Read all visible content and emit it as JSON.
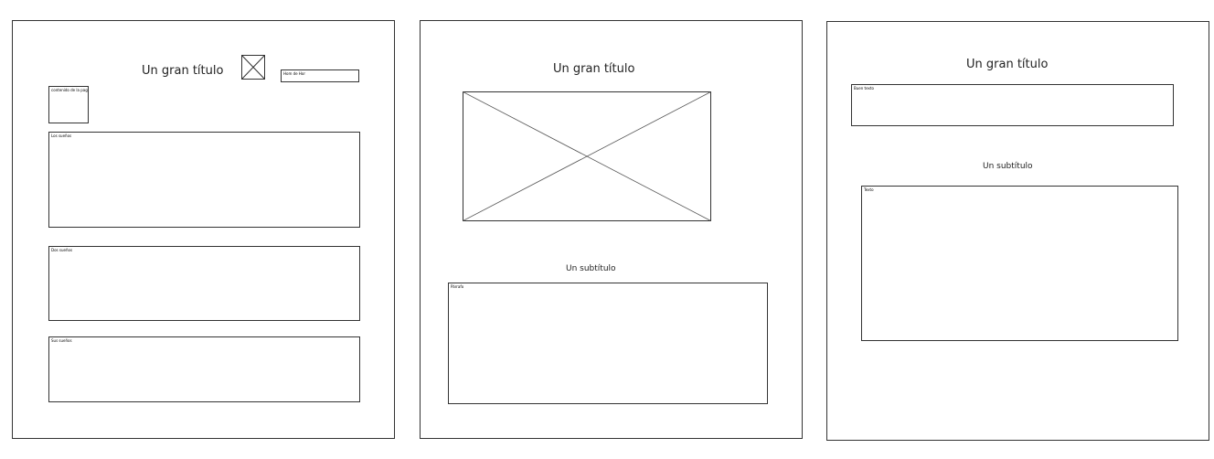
{
  "screen1": {
    "title": "Un gran título",
    "top_box_label": "Hom de Hor",
    "small_box_label": "contenido de la pag",
    "box_a_label": "Los sueños",
    "box_b_label": "Dos sueños",
    "box_c_label": "Sus sueños"
  },
  "screen2": {
    "title": "Un gran título",
    "subtitle": "Un subtítulo",
    "box_label": "Párrafo"
  },
  "screen3": {
    "title": "Un gran título",
    "top_box_label": "Buen texto",
    "subtitle": "Un subtítulo",
    "box_label": "Texto"
  }
}
